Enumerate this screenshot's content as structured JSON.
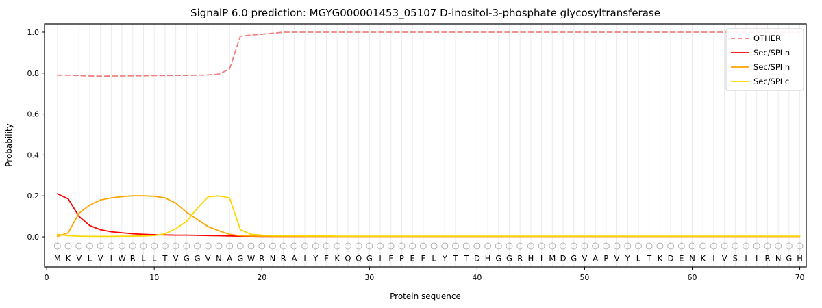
{
  "chart_data": {
    "type": "line",
    "title": "SignalP 6.0 prediction: MGYG000001453_05107 D-inositol-3-phosphate glycosyltransferase",
    "xlabel": "Protein sequence",
    "ylabel": "Probability",
    "xticks": [
      0,
      10,
      20,
      30,
      40,
      50,
      60,
      70
    ],
    "yticks": [
      0.0,
      0.2,
      0.4,
      0.6,
      0.8,
      1.0
    ],
    "xlim": [
      0,
      70
    ],
    "ylim": [
      0.0,
      1.0
    ],
    "grid": "vertical-per-residue",
    "legend_position": "upper right",
    "marker": "open-circle",
    "sequence": "MKVLVIWRLLTVGGVNAGWRNRAIYFKQQGIFPEFLYTTDHGGRHIMDGVAPVYLTKDENKIVSIIRNGH",
    "series": [
      {
        "name": "OTHER",
        "color": "#f08080",
        "dash": "dashed",
        "values": [
          0.79,
          0.79,
          0.788,
          0.786,
          0.785,
          0.786,
          0.786,
          0.787,
          0.787,
          0.788,
          0.788,
          0.789,
          0.789,
          0.79,
          0.791,
          0.795,
          0.82,
          0.98,
          0.986,
          0.99,
          0.995,
          1.0,
          1.0,
          1.0,
          1.0,
          1.0,
          1.0,
          1.0,
          1.0,
          1.0,
          1.0,
          1.0,
          1.0,
          1.0,
          1.0,
          1.0,
          1.0,
          1.0,
          1.0,
          1.0,
          1.0,
          1.0,
          1.0,
          1.0,
          1.0,
          1.0,
          1.0,
          1.0,
          1.0,
          1.0,
          1.0,
          1.0,
          1.0,
          1.0,
          1.0,
          1.0,
          1.0,
          1.0,
          1.0,
          1.0,
          1.0,
          1.0,
          1.0,
          1.0,
          1.0,
          1.0,
          1.0,
          1.0,
          1.0,
          1.0
        ]
      },
      {
        "name": "Sec/SPI n",
        "color": "#ff0000",
        "dash": "solid",
        "values": [
          0.21,
          0.185,
          0.1,
          0.055,
          0.035,
          0.025,
          0.02,
          0.015,
          0.012,
          0.01,
          0.009,
          0.008,
          0.008,
          0.007,
          0.006,
          0.005,
          0.004,
          0.003,
          0.003,
          0.002,
          0.002,
          0.002,
          0.002,
          0.002,
          0.002,
          0.002,
          0.002,
          0.002,
          0.002,
          0.002,
          0.002,
          0.002,
          0.002,
          0.002,
          0.002,
          0.002,
          0.002,
          0.002,
          0.002,
          0.002,
          0.002,
          0.002,
          0.002,
          0.002,
          0.002,
          0.002,
          0.002,
          0.002,
          0.002,
          0.002,
          0.002,
          0.002,
          0.002,
          0.002,
          0.002,
          0.002,
          0.002,
          0.002,
          0.002,
          0.002,
          0.002,
          0.002,
          0.002,
          0.002,
          0.002,
          0.002,
          0.002,
          0.002,
          0.002,
          0.002
        ]
      },
      {
        "name": "Sec/SPI h",
        "color": "#ffa500",
        "dash": "solid",
        "values": [
          0.002,
          0.02,
          0.115,
          0.155,
          0.18,
          0.19,
          0.196,
          0.2,
          0.2,
          0.198,
          0.19,
          0.165,
          0.12,
          0.085,
          0.05,
          0.03,
          0.012,
          0.005,
          0.004,
          0.003,
          0.002,
          0.002,
          0.002,
          0.002,
          0.002,
          0.002,
          0.002,
          0.002,
          0.002,
          0.002,
          0.002,
          0.002,
          0.002,
          0.002,
          0.002,
          0.002,
          0.002,
          0.002,
          0.002,
          0.002,
          0.002,
          0.002,
          0.002,
          0.002,
          0.002,
          0.002,
          0.002,
          0.002,
          0.002,
          0.002,
          0.002,
          0.002,
          0.002,
          0.002,
          0.002,
          0.002,
          0.002,
          0.002,
          0.002,
          0.002,
          0.002,
          0.002,
          0.002,
          0.002,
          0.002,
          0.002,
          0.002,
          0.002,
          0.002,
          0.002
        ]
      },
      {
        "name": "Sec/SPI c",
        "color": "#ffd700",
        "dash": "solid",
        "values": [
          0.012,
          0.005,
          0.003,
          0.002,
          0.002,
          0.002,
          0.003,
          0.003,
          0.004,
          0.006,
          0.015,
          0.04,
          0.075,
          0.14,
          0.195,
          0.2,
          0.19,
          0.035,
          0.012,
          0.008,
          0.006,
          0.005,
          0.005,
          0.004,
          0.004,
          0.004,
          0.003,
          0.003,
          0.003,
          0.003,
          0.003,
          0.003,
          0.003,
          0.003,
          0.003,
          0.003,
          0.003,
          0.003,
          0.003,
          0.003,
          0.003,
          0.003,
          0.003,
          0.003,
          0.003,
          0.003,
          0.003,
          0.003,
          0.003,
          0.003,
          0.003,
          0.003,
          0.003,
          0.003,
          0.003,
          0.003,
          0.003,
          0.003,
          0.003,
          0.003,
          0.003,
          0.003,
          0.003,
          0.003,
          0.003,
          0.003,
          0.003,
          0.003,
          0.003,
          0.003
        ]
      }
    ],
    "colors": {
      "grid": "#ebebeb",
      "axis": "#000000",
      "legend_border": "#cccccc",
      "residue_marker": "#b0b0b0",
      "residue_letter": "#111111"
    }
  }
}
